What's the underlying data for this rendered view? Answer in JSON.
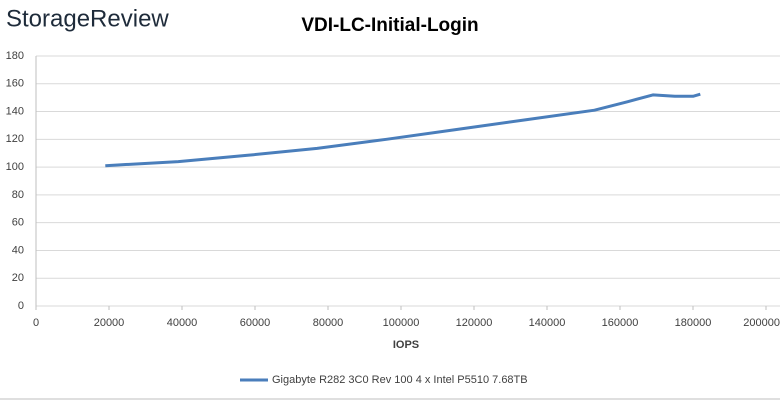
{
  "brand": "StorageReview",
  "chart_data": {
    "type": "line",
    "title": "VDI-LC-Initial-Login",
    "x_label": "IOPS",
    "x": [
      19000,
      39000,
      58000,
      77000,
      96000,
      115000,
      134000,
      153000,
      162000,
      169000,
      175000,
      180000,
      182000
    ],
    "series": [
      {
        "name": "Gigabyte R282 3C0 Rev 100 4 x Intel P5510 7.68TB",
        "color": "#4a7ebb",
        "values": [
          101,
          104,
          108.5,
          113.5,
          120,
          127,
          134,
          141,
          147,
          152,
          151,
          151,
          152.5
        ]
      }
    ],
    "xlim": [
      0,
      200000
    ],
    "xticks": [
      0,
      20000,
      40000,
      60000,
      80000,
      100000,
      120000,
      140000,
      160000,
      180000,
      200000
    ],
    "ylim": [
      0,
      180
    ],
    "yticks": [
      0,
      20,
      40,
      60,
      80,
      100,
      120,
      140,
      160,
      180
    ],
    "grid": true,
    "legend": "bottom"
  }
}
